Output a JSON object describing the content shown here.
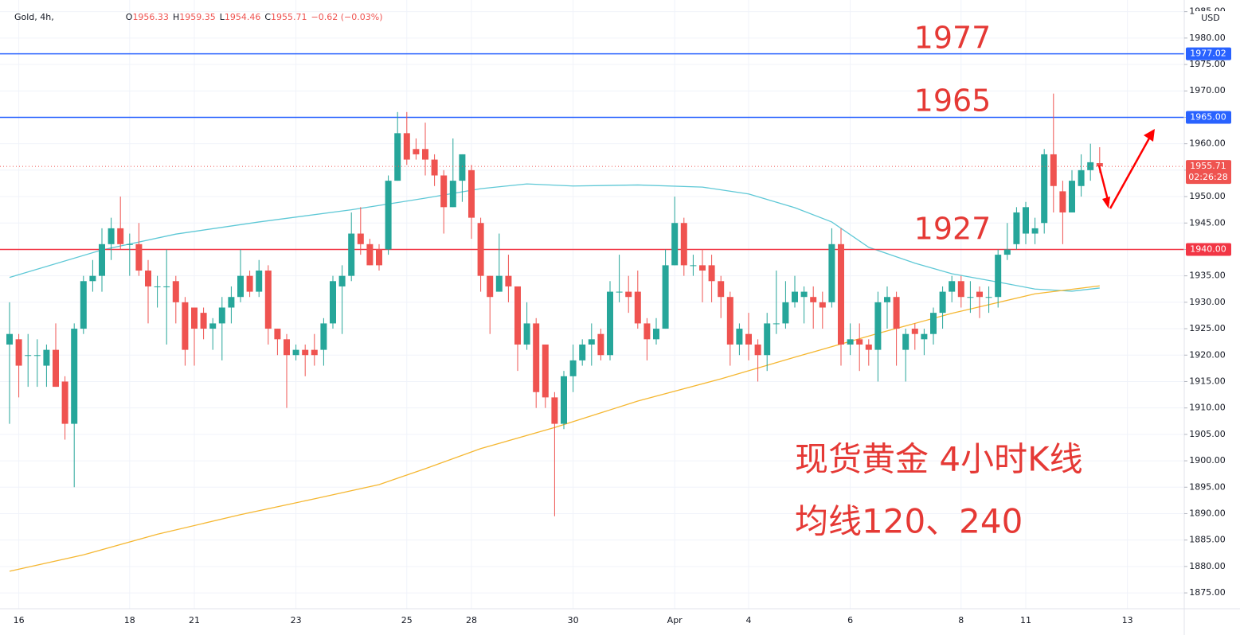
{
  "chart_data": {
    "type": "candlestick",
    "symbol": "Gold, 4h,",
    "header_values": [
      {
        "label": "O",
        "value": "1956.33"
      },
      {
        "label": "H",
        "value": "1959.35"
      },
      {
        "label": "L",
        "value": "1954.46"
      },
      {
        "label": "C",
        "value": "1955.71"
      }
    ],
    "header_change": "−0.62 (−0.03%)",
    "currency": "USD",
    "up_color": "#26a69a",
    "down_color": "#ef5350",
    "categories": [
      null,
      "16",
      null,
      null,
      null,
      null,
      null,
      null,
      null,
      null,
      null,
      null,
      null,
      "18",
      null,
      null,
      null,
      null,
      null,
      null,
      "21",
      null,
      null,
      null,
      null,
      null,
      null,
      null,
      null,
      null,
      null,
      "23",
      null,
      null,
      null,
      null,
      null,
      null,
      null,
      null,
      null,
      null,
      null,
      "25",
      null,
      null,
      null,
      null,
      null,
      null,
      "28",
      null,
      null,
      null,
      null,
      null,
      null,
      null,
      null,
      null,
      null,
      "30",
      null,
      null,
      null,
      null,
      null,
      null,
      null,
      null,
      null,
      null,
      "Apr",
      null,
      null,
      null,
      null,
      null,
      null,
      null,
      "4",
      null,
      null,
      null,
      null,
      null,
      null,
      null,
      null,
      null,
      null,
      "6",
      null,
      null,
      null,
      null,
      null,
      null,
      null,
      null,
      null,
      null,
      null,
      "8",
      null,
      null,
      null,
      null,
      null,
      null,
      "11",
      null,
      null,
      null,
      null,
      null,
      null,
      null,
      null,
      null,
      null,
      "13",
      null,
      null,
      null,
      null
    ],
    "open": [
      1922,
      1923,
      1920,
      1920,
      1918,
      1921,
      1915,
      1907,
      1925,
      1934,
      1935,
      1941,
      1944,
      1941,
      1941,
      1936,
      1933,
      1933,
      1934,
      1930,
      1929,
      1928,
      1925,
      1926,
      1929,
      1931,
      1935,
      1932,
      1936,
      1925,
      1923,
      1920,
      1921,
      1921,
      1921,
      1926,
      1933,
      1935,
      1943,
      1941,
      1940,
      1940,
      1953,
      1962,
      1959,
      1959,
      1957,
      1954,
      1948,
      1953,
      1955,
      1945,
      1935,
      1932,
      1935,
      1933,
      1922,
      1926,
      1922,
      1912,
      1907,
      1916,
      1919,
      1922,
      1924,
      1920,
      1932,
      1932,
      1932,
      1926,
      1923,
      1925,
      1937,
      1945,
      1937,
      1937,
      1937,
      1934,
      1931,
      1922,
      1924,
      1922,
      1920,
      1926,
      1926,
      1930,
      1931,
      1931,
      1930,
      1930,
      1941,
      1922,
      1923,
      1922,
      1921,
      1930,
      1931,
      1921,
      1925,
      1923,
      1924,
      1928,
      1932,
      1934,
      1931,
      1932,
      1931,
      1931,
      1939,
      1941,
      1943,
      1943,
      1945,
      1958,
      1951,
      1947,
      1952,
      1955,
      1956.33,
      null,
      null,
      null,
      null,
      null,
      null,
      null
    ],
    "high": [
      1930,
      1924,
      1924,
      1923,
      1922,
      1926,
      1916,
      1926,
      1935,
      1938,
      1944,
      1946,
      1950,
      1943,
      1945,
      1938,
      1935,
      1940,
      1935,
      1931,
      1929,
      1929,
      1927,
      1931,
      1933,
      1940,
      1936,
      1938,
      1937,
      1925,
      1924,
      1922,
      1922,
      1924,
      1927,
      1935,
      1937,
      1947,
      1948,
      1942,
      1941,
      1954,
      1966,
      1966,
      1961,
      1964,
      1958,
      1955,
      1961,
      1958,
      1956,
      1946,
      1935,
      1943,
      1939,
      1933,
      1930,
      1927,
      1922,
      1913,
      1917,
      1922,
      1923,
      1926,
      1925,
      1934,
      1939,
      1935,
      1936,
      1927,
      1927,
      1940,
      1950,
      1946,
      1939,
      1940,
      1939,
      1935,
      1932,
      1926,
      1928,
      1923,
      1928,
      1936,
      1934,
      1935,
      1933,
      1933,
      1932,
      1944,
      1944,
      1926,
      1926,
      1923,
      1932,
      1933,
      1932,
      1925,
      1926,
      1925,
      1929,
      1933,
      1935,
      1935,
      1934,
      1933,
      1933,
      1940,
      1945,
      1948,
      1949,
      1946,
      1959,
      1969.5,
      1953,
      1955,
      1958,
      1960,
      1959.35,
      null,
      null,
      null,
      null,
      null,
      null,
      null
    ],
    "low": [
      1907,
      1912,
      1914,
      1914,
      1914,
      1914,
      1904,
      1895,
      1924,
      1932,
      1932,
      1938,
      1940,
      1935,
      1935,
      1926,
      1929,
      1922,
      1926,
      1918,
      1918,
      1923,
      1921,
      1919,
      1926,
      1930,
      1931,
      1931,
      1922,
      1920,
      1910,
      1919,
      1916,
      1918,
      1918,
      1925,
      1924,
      1934,
      1939,
      1937,
      1936,
      1939,
      1953,
      1956,
      1957,
      1954,
      1952,
      1943,
      1948,
      1949,
      1942,
      1932,
      1924,
      1932,
      1930,
      1917,
      1921,
      1910,
      1910,
      1889.5,
      1906,
      1913,
      1918,
      1918,
      1919,
      1919,
      1930,
      1928,
      1925,
      1919,
      1922,
      1925,
      1937,
      1935,
      1935,
      1930,
      1930,
      1927,
      1918,
      1920,
      1919,
      1915,
      1917,
      1924,
      1925,
      1929,
      1926,
      1925,
      1925,
      1929,
      1918,
      1920,
      1917,
      1918,
      1915,
      1925,
      1918,
      1915,
      1921,
      1920,
      1922,
      1925,
      1930,
      1929,
      1928,
      1927,
      1928,
      1929,
      1938,
      1940,
      1941,
      1941,
      1943,
      1947,
      1941,
      1947,
      1950,
      1953,
      1954.46,
      null,
      null,
      null,
      null,
      null,
      null,
      null
    ],
    "close": [
      1924,
      1918,
      1920,
      1920,
      1921,
      1914,
      1907,
      1925,
      1934,
      1935,
      1941,
      1944,
      1941,
      1941,
      1936,
      1933,
      1933,
      1933,
      1930,
      1921,
      1925,
      1925,
      1926,
      1929,
      1931,
      1935,
      1932,
      1936,
      1925,
      1923,
      1920,
      1921,
      1920,
      1920,
      1926,
      1934,
      1935,
      1943,
      1941,
      1937,
      1937,
      1953,
      1962,
      1957,
      1958,
      1957,
      1954,
      1948,
      1953,
      1958,
      1946,
      1935,
      1931,
      1935,
      1933,
      1922,
      1926,
      1913,
      1912,
      1907,
      1916,
      1919,
      1922,
      1923,
      1920,
      1932,
      1932,
      1931,
      1926,
      1923,
      1925,
      1937,
      1945,
      1937,
      1937,
      1936,
      1934,
      1931,
      1922,
      1925,
      1922,
      1920,
      1926,
      1926,
      1930,
      1932,
      1932,
      1930,
      1929,
      1941,
      1922,
      1923,
      1922,
      1921,
      1930,
      1931,
      1925,
      1924,
      1924,
      1924,
      1928,
      1932,
      1934,
      1931,
      1931,
      1931,
      1931,
      1939,
      1940,
      1947,
      1948,
      1944,
      1958,
      1952,
      1947,
      1953,
      1955,
      1956.5,
      1955.71,
      null,
      null,
      null,
      null,
      null,
      null,
      null
    ],
    "series": [
      {
        "color": "#5ec8d6",
        "x": [
          0,
          10,
          18,
          27,
          37,
          45,
          51,
          56,
          61,
          68,
          75,
          80,
          85,
          89,
          93,
          98,
          102,
          108,
          111,
          115,
          118
        ],
        "values": [
          1934.7,
          1939.9,
          1942.9,
          1945.2,
          1947.5,
          1949.7,
          1951.5,
          1952.4,
          1952,
          1952.2,
          1951.8,
          1950.5,
          1947.9,
          1945.2,
          1940.4,
          1937.4,
          1935.4,
          1933.5,
          1932.5,
          1932.1,
          1932.7
        ]
      },
      {
        "color": "#f5b731",
        "x": [
          0,
          8,
          16,
          25,
          33,
          40,
          45,
          51,
          59,
          68,
          77,
          85,
          94,
          102,
          111,
          118
        ],
        "values": [
          1879.1,
          1882.2,
          1886.1,
          1889.8,
          1892.8,
          1895.5,
          1898.5,
          1902.3,
          1906.3,
          1911.3,
          1915.5,
          1919.6,
          1924.1,
          1927.9,
          1931.6,
          1933.1
        ]
      }
    ],
    "levels": [
      {
        "value": 1977.02,
        "label": "1977.02",
        "color": "#2962ff"
      },
      {
        "value": 1965,
        "label": "1965.00",
        "color": "#2962ff"
      },
      {
        "value": 1940,
        "label": "1940.00",
        "color": "#f23645"
      }
    ],
    "last_price": {
      "value": 1955.71,
      "label": "1955.71",
      "countdown": "02:26:28",
      "color": "#ef5350"
    },
    "ylim": [
      1872,
      1986
    ],
    "yticks": [
      {
        "value": 1875,
        "label": "1875.00"
      },
      {
        "value": 1880,
        "label": "1880.00"
      },
      {
        "value": 1885,
        "label": "1885.00"
      },
      {
        "value": 1890,
        "label": "1890.00"
      },
      {
        "value": 1895,
        "label": "1895.00"
      },
      {
        "value": 1900,
        "label": "1900.00"
      },
      {
        "value": 1905,
        "label": "1905.00"
      },
      {
        "value": 1910,
        "label": "1910.00"
      },
      {
        "value": 1915,
        "label": "1915.00"
      },
      {
        "value": 1920,
        "label": "1920.00"
      },
      {
        "value": 1925,
        "label": "1925.00"
      },
      {
        "value": 1930,
        "label": "1930.00"
      },
      {
        "value": 1935,
        "label": "1935.00"
      },
      {
        "value": 1940,
        "label": "1940.00"
      },
      {
        "value": 1945,
        "label": "1945.00"
      },
      {
        "value": 1950,
        "label": "1950.00"
      },
      {
        "value": 1955,
        "label": "1955.00"
      },
      {
        "value": 1960,
        "label": "1960.00"
      },
      {
        "value": 1965,
        "label": "1965.00"
      },
      {
        "value": 1970,
        "label": "1970.00"
      },
      {
        "value": 1975,
        "label": "1975.00"
      },
      {
        "value": 1980,
        "label": "1980.00"
      },
      {
        "value": 1985,
        "label": "1985.00"
      }
    ],
    "grid": true,
    "annotations": [
      "1977",
      "1965",
      "1927",
      "现货黄金 4小时K线",
      "均线120、240"
    ]
  }
}
